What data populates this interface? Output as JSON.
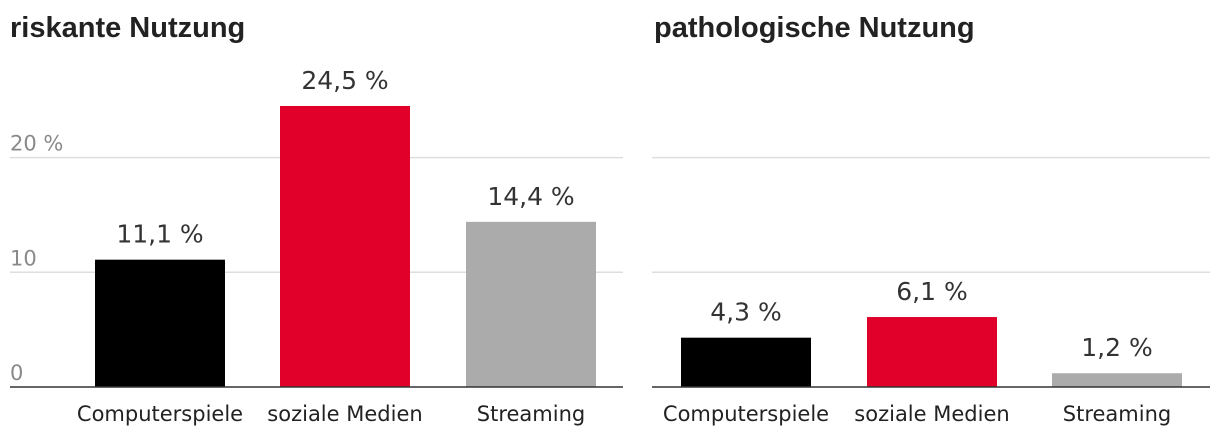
{
  "chart_data": [
    {
      "type": "bar",
      "title": "riskante Nutzung",
      "categories": [
        "Computerspiele",
        "soziale Medien",
        "Streaming"
      ],
      "values": [
        11.1,
        24.5,
        14.4
      ],
      "value_labels": [
        "11,1 %",
        "24,5 %",
        "14,4 %"
      ],
      "colors": [
        "#000000",
        "#e0002a",
        "#ababab"
      ],
      "yticks": [
        0,
        10,
        20
      ],
      "ytick_labels": [
        "0",
        "10",
        "20 %"
      ],
      "ylim": [
        0,
        30
      ],
      "grid": true,
      "xlabel": "",
      "ylabel": ""
    },
    {
      "type": "bar",
      "title": "pathologische Nutzung",
      "categories": [
        "Computerspiele",
        "soziale Medien",
        "Streaming"
      ],
      "values": [
        4.3,
        6.1,
        1.2
      ],
      "value_labels": [
        "4,3 %",
        "6,1 %",
        "1,2 %"
      ],
      "colors": [
        "#000000",
        "#e0002a",
        "#ababab"
      ],
      "yticks": [
        0,
        10,
        20
      ],
      "ytick_labels": [],
      "ylim": [
        0,
        30
      ],
      "grid": true,
      "xlabel": "",
      "ylabel": ""
    }
  ]
}
